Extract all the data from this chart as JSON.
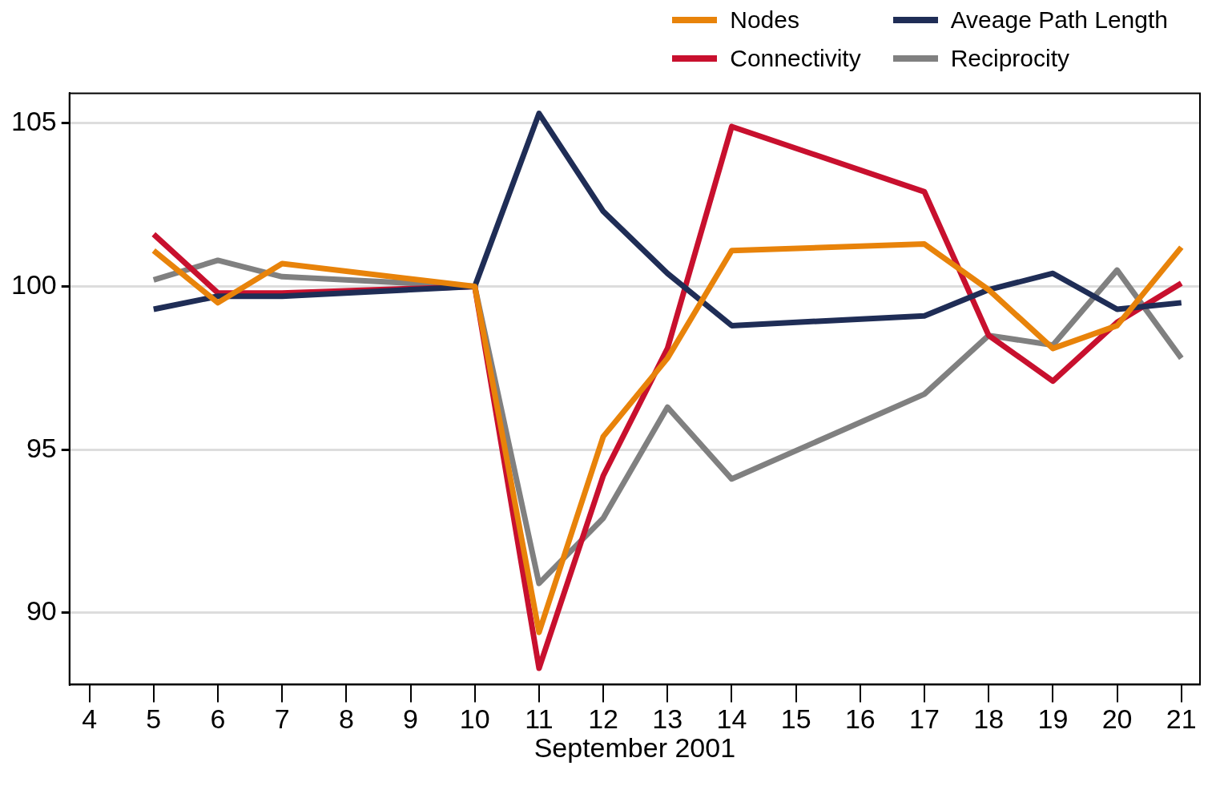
{
  "chart_data": {
    "type": "line",
    "xlabel": "September 2001",
    "xlim": [
      3.69,
      21.29
    ],
    "xticks": [
      4,
      5,
      6,
      7,
      8,
      9,
      10,
      11,
      12,
      13,
      14,
      15,
      16,
      17,
      18,
      19,
      20,
      21
    ],
    "ylim": [
      87.8,
      105.92
    ],
    "yticks": [
      90,
      95,
      100,
      105
    ],
    "grid": "y",
    "legend": "top right",
    "marker": "none",
    "line_style": "solid",
    "series": [
      {
        "name": "Nodes",
        "color": "#e8830a",
        "x": [
          5,
          6,
          7,
          10,
          11,
          12,
          13,
          14,
          17,
          18,
          19,
          20,
          21
        ],
        "values": [
          101.1,
          99.5,
          100.7,
          100,
          89.4,
          95.4,
          97.8,
          101.1,
          101.3,
          99.9,
          98.1,
          98.8,
          101.2
        ]
      },
      {
        "name": "Aveage Path Length",
        "color": "#1f2d56",
        "x": [
          5,
          6,
          7,
          10,
          11,
          12,
          13,
          14,
          17,
          18,
          19,
          20,
          21
        ],
        "values": [
          99.3,
          99.7,
          99.7,
          100,
          105.3,
          102.3,
          100.4,
          98.8,
          99.1,
          99.9,
          100.4,
          99.3,
          99.5
        ]
      },
      {
        "name": "Connectivity",
        "color": "#c8102e",
        "x": [
          5,
          6,
          7,
          10,
          11,
          12,
          13,
          14,
          17,
          18,
          19,
          20,
          21
        ],
        "values": [
          101.6,
          99.8,
          99.8,
          100,
          88.3,
          94.2,
          98.1,
          104.9,
          102.9,
          98.5,
          97.1,
          98.9,
          100.1
        ]
      },
      {
        "name": "Reciprocity",
        "color": "#808080",
        "x": [
          5,
          6,
          7,
          10,
          11,
          12,
          13,
          14,
          17,
          18,
          19,
          20,
          21
        ],
        "values": [
          100.2,
          100.8,
          100.3,
          100,
          90.9,
          92.9,
          96.3,
          94.1,
          96.7,
          98.5,
          98.2,
          100.5,
          97.8
        ]
      }
    ]
  }
}
